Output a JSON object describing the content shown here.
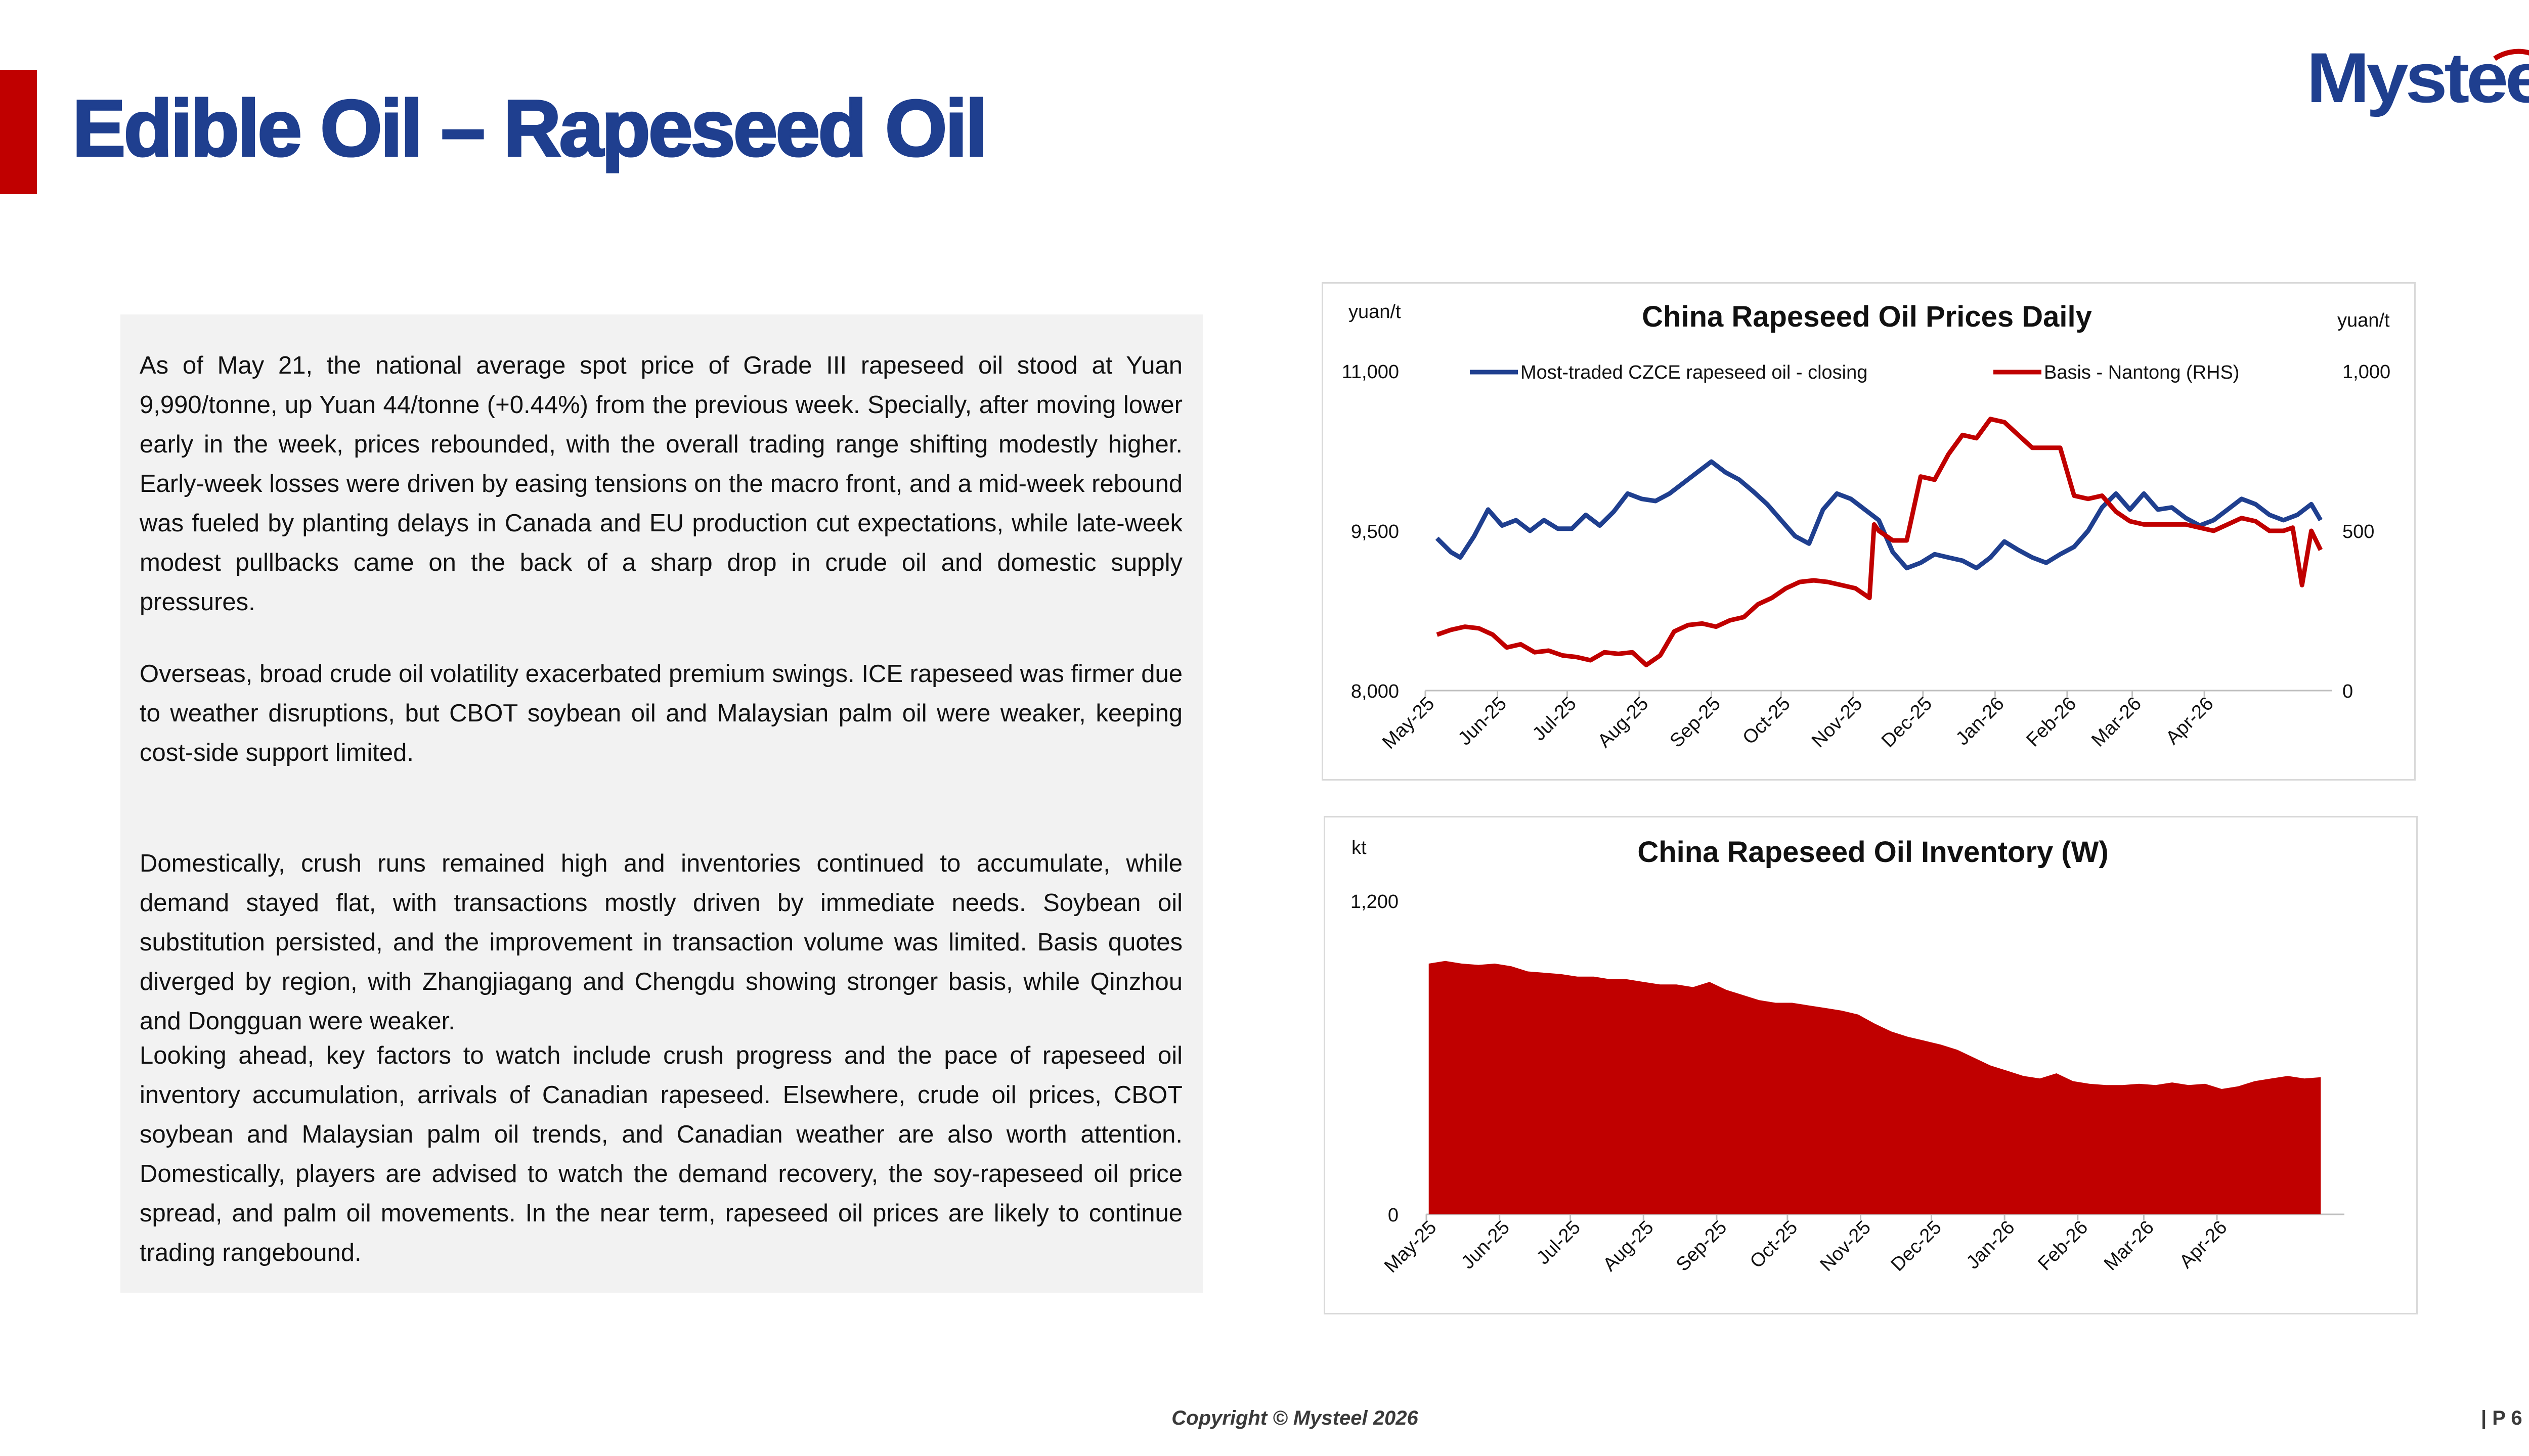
{
  "header": {
    "title": "Edible Oil – Rapeseed Oil",
    "logo_text": "Mysteel",
    "brand_blue": "#1f3f8f",
    "brand_red": "#c00000"
  },
  "commentary": {
    "paragraphs": [
      "As of May 21, the national average spot price of Grade III rapeseed oil stood at Yuan 9,990/tonne, up Yuan 44/tonne (+0.44%) from the previous week. Specially, after moving lower early in the week, prices rebounded, with the overall trading range shifting modestly higher. Early-week losses were driven by easing tensions on the macro front, and a mid-week rebound was fueled by planting delays in Canada and EU production cut expectations, while late-week modest pullbacks came on the back of a sharp drop in crude oil and domestic supply pressures.",
      "Overseas, broad crude oil volatility exacerbated premium swings. ICE rapeseed was firmer due to weather disruptions, but CBOT soybean oil and Malaysian palm oil were weaker, keeping cost-side support limited.",
      "Domestically, crush runs remained high and inventories continued to accumulate, while demand stayed flat, with transactions mostly driven by immediate needs. Soybean oil substitution persisted, and the improvement in transaction volume was limited. Basis quotes diverged by region, with Zhangjiagang and Chengdu showing stronger basis, while Qinzhou and Dongguan were weaker.",
      "Looking ahead, key factors to watch include crush progress and the pace of rapeseed oil inventory accumulation, arrivals of Canadian rapeseed. Elsewhere, crude oil prices, CBOT soybean and Malaysian palm oil trends, and Canadian weather are also worth attention. Domestically, players are advised to watch the demand recovery, the soy-rapeseed oil price spread, and palm oil movements. In the near term, rapeseed oil prices are likely to continue trading rangebound."
    ]
  },
  "footer": {
    "copyright": "Copyright © Mysteel 2026",
    "page": "| P 6"
  },
  "chart_data": [
    {
      "type": "line",
      "title": "China Rapeseed Oil Prices Daily",
      "ylabel": "yuan/t",
      "y2label": "yuan/t",
      "ylim": [
        8000,
        11000
      ],
      "y2lim": [
        0,
        1000
      ],
      "yticks": [
        "8,000",
        "9,500",
        "11,000"
      ],
      "y2ticks": [
        "0",
        "500",
        "1,000"
      ],
      "x_ticks": [
        "May-25",
        "Jun-25",
        "Jul-25",
        "Aug-25",
        "Sep-25",
        "Oct-25",
        "Nov-25",
        "Dec-25",
        "Jan-26",
        "Feb-26",
        "Mar-26",
        "Apr-26"
      ],
      "legend_position": "top",
      "series": [
        {
          "name": "Most-traded CZCE rapeseed oil - closing",
          "axis": "left",
          "color": "#1f3f8f",
          "x": [
            "2025-05-06",
            "2025-05-12",
            "2025-05-16",
            "2025-05-22",
            "2025-05-28",
            "2025-06-03",
            "2025-06-09",
            "2025-06-15",
            "2025-06-21",
            "2025-06-27",
            "2025-07-03",
            "2025-07-09",
            "2025-07-15",
            "2025-07-21",
            "2025-07-27",
            "2025-08-02",
            "2025-08-08",
            "2025-08-14",
            "2025-08-20",
            "2025-08-26",
            "2025-09-01",
            "2025-09-07",
            "2025-09-13",
            "2025-09-19",
            "2025-09-25",
            "2025-10-01",
            "2025-10-07",
            "2025-10-13",
            "2025-10-19",
            "2025-10-25",
            "2025-10-31",
            "2025-11-06",
            "2025-11-12",
            "2025-11-18",
            "2025-11-24",
            "2025-11-30",
            "2025-12-06",
            "2025-12-12",
            "2025-12-18",
            "2025-12-24",
            "2025-12-30",
            "2026-01-05",
            "2026-01-11",
            "2026-01-17",
            "2026-01-23",
            "2026-01-29",
            "2026-02-04",
            "2026-02-10",
            "2026-02-16",
            "2026-02-22",
            "2026-02-28",
            "2026-03-06",
            "2026-03-12",
            "2026-03-18",
            "2026-03-24",
            "2026-03-30",
            "2026-04-05",
            "2026-04-11",
            "2026-04-17",
            "2026-04-23",
            "2026-04-29",
            "2026-05-05",
            "2026-05-11",
            "2026-05-17",
            "2026-05-21"
          ],
          "values": [
            9430,
            9300,
            9250,
            9450,
            9700,
            9550,
            9600,
            9500,
            9600,
            9520,
            9520,
            9650,
            9550,
            9680,
            9850,
            9800,
            9780,
            9850,
            9950,
            10050,
            10150,
            10050,
            9980,
            9870,
            9750,
            9600,
            9450,
            9380,
            9700,
            9850,
            9800,
            9700,
            9600,
            9300,
            9150,
            9200,
            9280,
            9250,
            9220,
            9150,
            9250,
            9400,
            9320,
            9250,
            9200,
            9280,
            9350,
            9500,
            9720,
            9850,
            9700,
            9850,
            9700,
            9720,
            9620,
            9550,
            9600,
            9700,
            9800,
            9750,
            9650,
            9600,
            9650,
            9750,
            9600
          ]
        },
        {
          "name": "Basis - Nantong (RHS)",
          "axis": "right",
          "color": "#c00000",
          "x": [
            "2025-05-06",
            "2025-05-12",
            "2025-05-18",
            "2025-05-24",
            "2025-05-30",
            "2025-06-05",
            "2025-06-11",
            "2025-06-17",
            "2025-06-23",
            "2025-06-29",
            "2025-07-05",
            "2025-07-11",
            "2025-07-17",
            "2025-07-23",
            "2025-07-29",
            "2025-08-04",
            "2025-08-10",
            "2025-08-16",
            "2025-08-22",
            "2025-08-28",
            "2025-09-03",
            "2025-09-09",
            "2025-09-15",
            "2025-09-21",
            "2025-09-27",
            "2025-10-03",
            "2025-10-09",
            "2025-10-15",
            "2025-10-21",
            "2025-10-27",
            "2025-11-02",
            "2025-11-08",
            "2025-11-10",
            "2025-11-12",
            "2025-11-18",
            "2025-11-24",
            "2025-11-30",
            "2025-12-06",
            "2025-12-12",
            "2025-12-18",
            "2025-12-24",
            "2025-12-30",
            "2026-01-05",
            "2026-01-11",
            "2026-01-17",
            "2026-01-23",
            "2026-01-29",
            "2026-02-04",
            "2026-02-10",
            "2026-02-16",
            "2026-02-22",
            "2026-02-28",
            "2026-03-06",
            "2026-03-12",
            "2026-03-18",
            "2026-03-24",
            "2026-03-30",
            "2026-04-05",
            "2026-04-11",
            "2026-04-17",
            "2026-04-23",
            "2026-04-29",
            "2026-05-05",
            "2026-05-09",
            "2026-05-13",
            "2026-05-17",
            "2026-05-21"
          ],
          "values": [
            175,
            190,
            200,
            195,
            175,
            135,
            145,
            120,
            125,
            110,
            105,
            95,
            120,
            115,
            120,
            80,
            110,
            185,
            205,
            210,
            200,
            220,
            230,
            270,
            290,
            320,
            340,
            345,
            340,
            330,
            320,
            290,
            520,
            500,
            470,
            470,
            670,
            660,
            740,
            800,
            790,
            850,
            840,
            800,
            760,
            760,
            760,
            610,
            600,
            610,
            560,
            530,
            520,
            520,
            520,
            520,
            510,
            500,
            520,
            540,
            530,
            500,
            500,
            510,
            330,
            500,
            440
          ]
        }
      ]
    },
    {
      "type": "area",
      "title": "China Rapeseed Oil Inventory (W)",
      "ylabel": "kt",
      "ylim": [
        0,
        1200
      ],
      "yticks": [
        "0",
        "1,200"
      ],
      "x_ticks": [
        "May-25",
        "Jun-25",
        "Jul-25",
        "Aug-25",
        "Sep-25",
        "Oct-25",
        "Nov-25",
        "Dec-25",
        "Jan-26",
        "Feb-26",
        "Mar-26",
        "Apr-26"
      ],
      "series": [
        {
          "name": "",
          "color": "#c00000",
          "x": [
            "2025-05-02",
            "2025-05-09",
            "2025-05-16",
            "2025-05-23",
            "2025-05-30",
            "2025-06-06",
            "2025-06-13",
            "2025-06-20",
            "2025-06-27",
            "2025-07-04",
            "2025-07-11",
            "2025-07-18",
            "2025-07-25",
            "2025-08-01",
            "2025-08-08",
            "2025-08-15",
            "2025-08-22",
            "2025-08-29",
            "2025-09-05",
            "2025-09-12",
            "2025-09-19",
            "2025-09-26",
            "2025-10-03",
            "2025-10-10",
            "2025-10-17",
            "2025-10-24",
            "2025-10-31",
            "2025-11-07",
            "2025-11-14",
            "2025-11-21",
            "2025-11-28",
            "2025-12-05",
            "2025-12-12",
            "2025-12-19",
            "2025-12-26",
            "2026-01-02",
            "2026-01-09",
            "2026-01-16",
            "2026-01-23",
            "2026-01-30",
            "2026-02-06",
            "2026-02-13",
            "2026-02-20",
            "2026-02-27",
            "2026-03-06",
            "2026-03-13",
            "2026-03-20",
            "2026-03-27",
            "2026-04-03",
            "2026-04-10",
            "2026-04-17",
            "2026-04-24",
            "2026-05-01",
            "2026-05-08",
            "2026-05-15"
          ],
          "values": [
            960,
            970,
            960,
            955,
            960,
            950,
            930,
            925,
            920,
            910,
            910,
            900,
            900,
            890,
            880,
            880,
            870,
            890,
            860,
            840,
            820,
            810,
            810,
            800,
            790,
            780,
            765,
            730,
            700,
            680,
            665,
            650,
            630,
            600,
            570,
            550,
            530,
            520,
            540,
            510,
            500,
            495,
            495,
            500,
            495,
            505,
            495,
            500,
            480,
            490,
            510,
            520,
            530,
            520,
            525
          ]
        }
      ]
    }
  ]
}
